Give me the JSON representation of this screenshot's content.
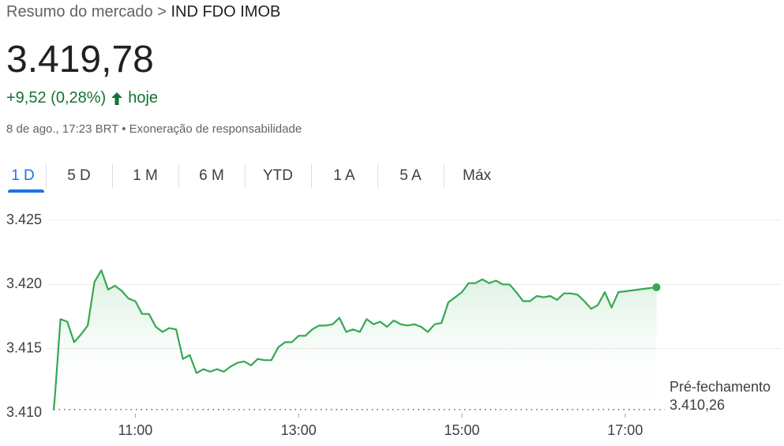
{
  "header": {
    "breadcrumb": "Resumo do mercado >",
    "name": "IND FDO IMOB",
    "price": "3.419,78",
    "change": "+9,52 (0,28%)",
    "change_suffix": "hoje",
    "timestamp": "8 de ago., 17:23 BRT",
    "separator": "•",
    "disclaimer": "Exoneração de responsabilidade"
  },
  "tabs": [
    "1 D",
    "5 D",
    "1 M",
    "6 M",
    "YTD",
    "1 A",
    "5 A",
    "Máx"
  ],
  "chart_data": {
    "type": "line",
    "color": "#34a853",
    "x": [
      "10:00",
      "10:01",
      "10:05",
      "10:10",
      "10:15",
      "10:20",
      "10:25",
      "10:30",
      "10:35",
      "10:40",
      "10:45",
      "10:50",
      "10:55",
      "11:00",
      "11:05",
      "11:10",
      "11:15",
      "11:20",
      "11:25",
      "11:30",
      "11:35",
      "11:40",
      "11:45",
      "11:50",
      "11:55",
      "12:00",
      "12:05",
      "12:10",
      "12:15",
      "12:20",
      "12:25",
      "12:30",
      "12:35",
      "12:40",
      "12:45",
      "12:50",
      "12:55",
      "13:00",
      "13:05",
      "13:10",
      "13:15",
      "13:20",
      "13:25",
      "13:30",
      "13:35",
      "13:40",
      "13:45",
      "13:50",
      "13:55",
      "14:00",
      "14:05",
      "14:10",
      "14:15",
      "14:20",
      "14:25",
      "14:30",
      "14:35",
      "14:40",
      "14:45",
      "14:50",
      "14:55",
      "15:00",
      "15:05",
      "15:10",
      "15:15",
      "15:20",
      "15:25",
      "15:30",
      "15:35",
      "15:40",
      "15:45",
      "15:50",
      "15:55",
      "16:00",
      "16:05",
      "16:10",
      "16:15",
      "16:20",
      "16:25",
      "16:30",
      "16:35",
      "16:40",
      "16:45",
      "16:50",
      "16:55",
      "17:23"
    ],
    "values": [
      3410.2,
      3411.4,
      3417.3,
      3417.1,
      3415.5,
      3416.1,
      3416.8,
      3420.2,
      3421.1,
      3419.6,
      3419.9,
      3419.5,
      3418.9,
      3418.7,
      3417.7,
      3417.7,
      3416.7,
      3416.3,
      3416.6,
      3416.5,
      3414.2,
      3414.5,
      3413.1,
      3413.4,
      3413.2,
      3413.4,
      3413.2,
      3413.6,
      3413.9,
      3414.0,
      3413.7,
      3414.2,
      3414.1,
      3414.1,
      3415.1,
      3415.5,
      3415.5,
      3416.0,
      3416.0,
      3416.5,
      3416.8,
      3416.8,
      3416.9,
      3417.4,
      3416.3,
      3416.5,
      3416.3,
      3417.3,
      3416.9,
      3417.1,
      3416.7,
      3417.2,
      3416.9,
      3416.8,
      3416.9,
      3416.7,
      3416.3,
      3416.9,
      3417.0,
      3418.6,
      3419.0,
      3419.4,
      3420.1,
      3420.1,
      3420.4,
      3420.1,
      3420.3,
      3420.0,
      3420.0,
      3419.4,
      3418.7,
      3418.7,
      3419.1,
      3419.0,
      3419.1,
      3418.8,
      3419.3,
      3419.3,
      3419.2,
      3418.7,
      3418.1,
      3418.4,
      3419.4,
      3418.2,
      3419.4,
      3419.78
    ],
    "xlim": [
      "10:00",
      "18:55"
    ],
    "xticks": [
      "11:00",
      "13:00",
      "15:00",
      "17:00"
    ],
    "ylim": [
      3410,
      3425
    ],
    "yticks": [
      {
        "value": 3410,
        "label": "3.410"
      },
      {
        "value": 3415,
        "label": "3.415"
      },
      {
        "value": 3420,
        "label": "3.420"
      },
      {
        "value": 3425,
        "label": "3.425"
      }
    ],
    "grid": true,
    "reference": {
      "name": "Pré-fechamento",
      "value": 3410.26,
      "label": "3.410,26"
    }
  }
}
